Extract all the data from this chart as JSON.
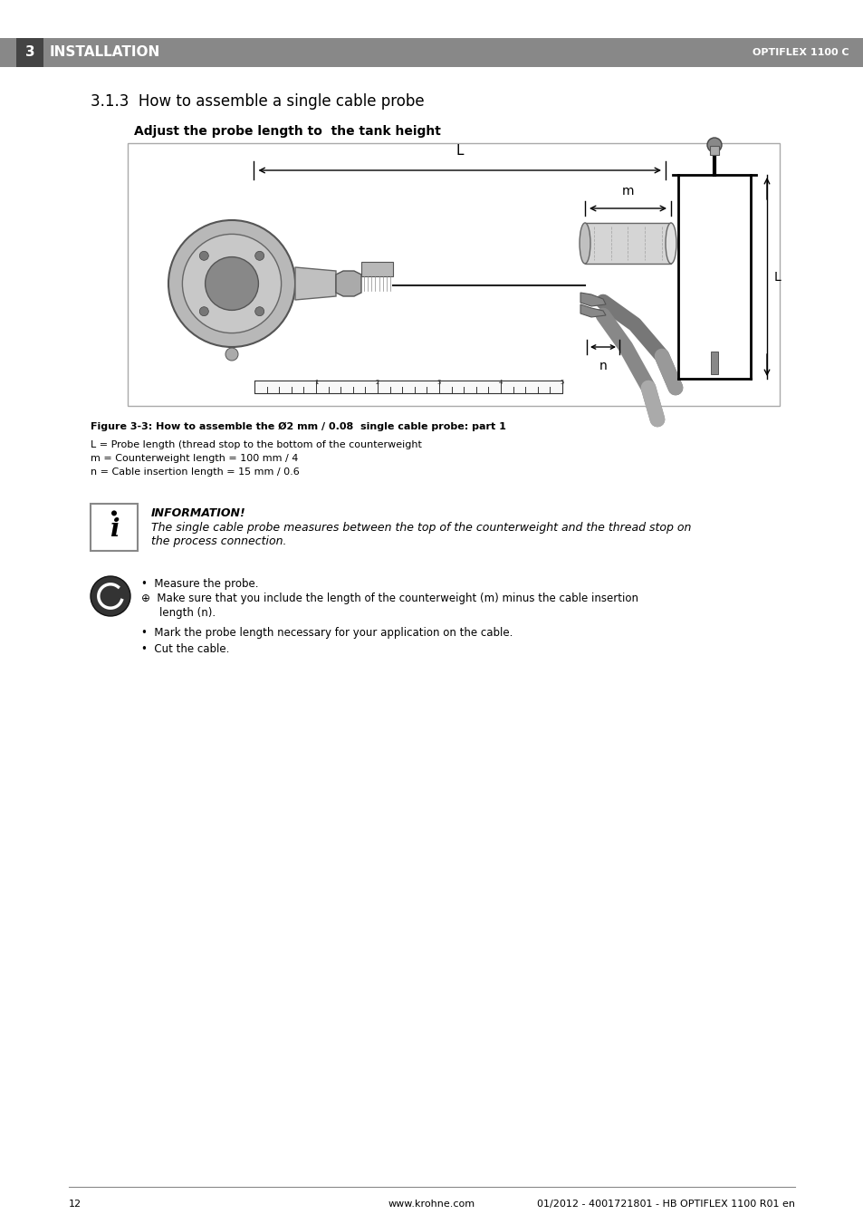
{
  "page_bg": "#ffffff",
  "header_bar_color": "#888888",
  "header_number_bg": "#444444",
  "header_number_text": "3",
  "header_title": "INSTALLATION",
  "header_right_text": "OPTIFLEX 1100 C",
  "section_title": "3.1.3  How to assemble a single cable probe",
  "diagram_title": "Adjust the probe length to  the tank height",
  "figure_caption": "Figure 3-3: How to assemble the Ø2 mm / 0.08  single cable probe: part 1",
  "legend_lines": [
    "L = Probe length (thread stop to the bottom of the counterweight",
    "m = Counterweight length = 100 mm / 4",
    "n = Cable insertion length = 15 mm / 0.6"
  ],
  "info_title": "INFORMATION!",
  "info_text": "The single cable probe measures between the top of the counterweight and the thread stop on\nthe process connection.",
  "bullet_point_0": "Measure the probe.",
  "bullet_sub_line1": "Make sure that you include the length of the counterweight (m) minus the cable insertion",
  "bullet_sub_line2": "length (n).",
  "bullet_point_2": "Mark the probe length necessary for your application on the cable.",
  "bullet_point_3": "Cut the cable.",
  "footer_page": "12",
  "footer_center": "www.krohne.com",
  "footer_right": "01/2012 - 4001721801 - HB OPTIFLEX 1100 R01 en"
}
